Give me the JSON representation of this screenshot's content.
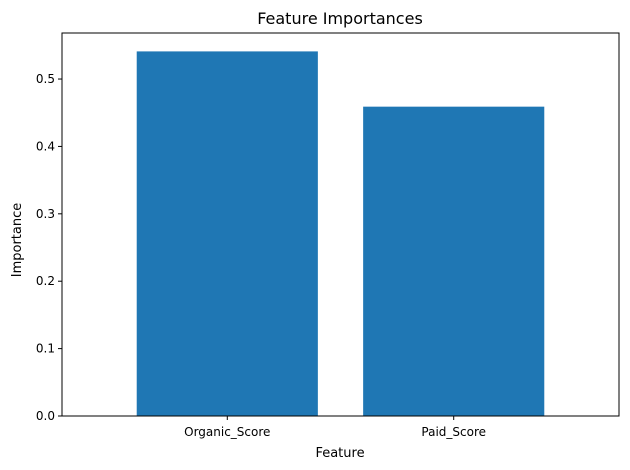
{
  "chart_data": {
    "type": "bar",
    "title": "Feature Importances",
    "xlabel": "Feature",
    "ylabel": "Importance",
    "categories": [
      "Organic_Score",
      "Paid_Score"
    ],
    "values": [
      0.541,
      0.459
    ],
    "ylim": [
      0,
      0.5683
    ],
    "yticks": [
      0.0,
      0.1,
      0.2,
      0.3,
      0.4,
      0.5
    ],
    "ytick_labels": [
      "0.0",
      "0.1",
      "0.2",
      "0.3",
      "0.4",
      "0.5"
    ],
    "bar_color": "#1f77b4",
    "grid": false,
    "legend": "none"
  }
}
